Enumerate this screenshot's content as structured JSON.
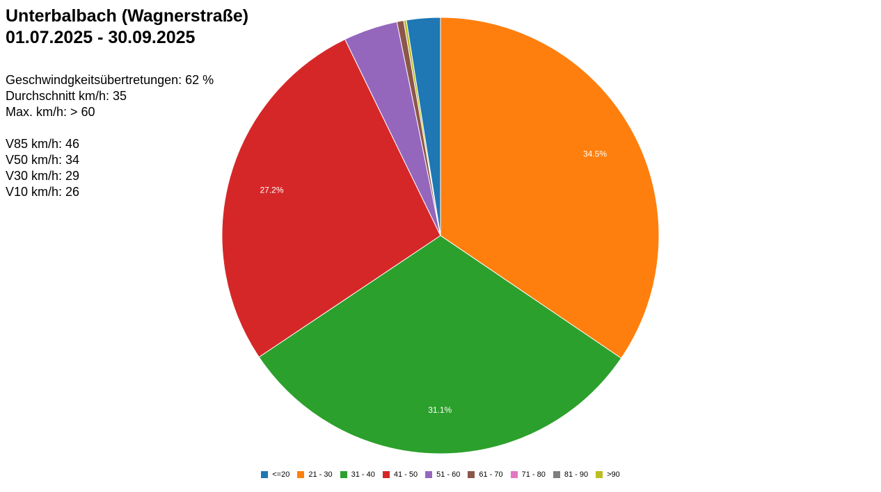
{
  "header": {
    "title_line1": "Unterbalbach (Wagnerstraße)",
    "title_line2": "01.07.2025 - 30.09.2025"
  },
  "stats": {
    "violations": "Geschwindgkeitsübertretungen: 62 %",
    "average": "Durchschnitt km/h: 35",
    "max": "Max. km/h: > 60",
    "v85": "V85 km/h: 46",
    "v50": "V50 km/h: 34",
    "v30": "V30 km/h: 29",
    "v10": "V10 km/h: 26"
  },
  "chart_data": {
    "type": "pie",
    "categories": [
      "<=20",
      "21 - 30",
      "31 - 40",
      "41 - 50",
      "51 - 60",
      "61 - 70",
      "71 - 80",
      "81 - 90",
      ">90"
    ],
    "values": [
      2.5,
      34.5,
      31.1,
      27.2,
      4.0,
      0.5,
      0.0,
      0.0,
      0.2
    ],
    "colors": [
      "#1f77b4",
      "#ff7f0e",
      "#2ca02c",
      "#d62728",
      "#9467bd",
      "#8c564b",
      "#e377c2",
      "#7f7f7f",
      "#bcbd22"
    ],
    "slice_labels": [
      "",
      "34.5%",
      "31.1%",
      "27.2%",
      "",
      "",
      "",
      "",
      ""
    ],
    "start_category": "21 - 30",
    "direction": "clockwise",
    "legend_position": "bottom"
  }
}
